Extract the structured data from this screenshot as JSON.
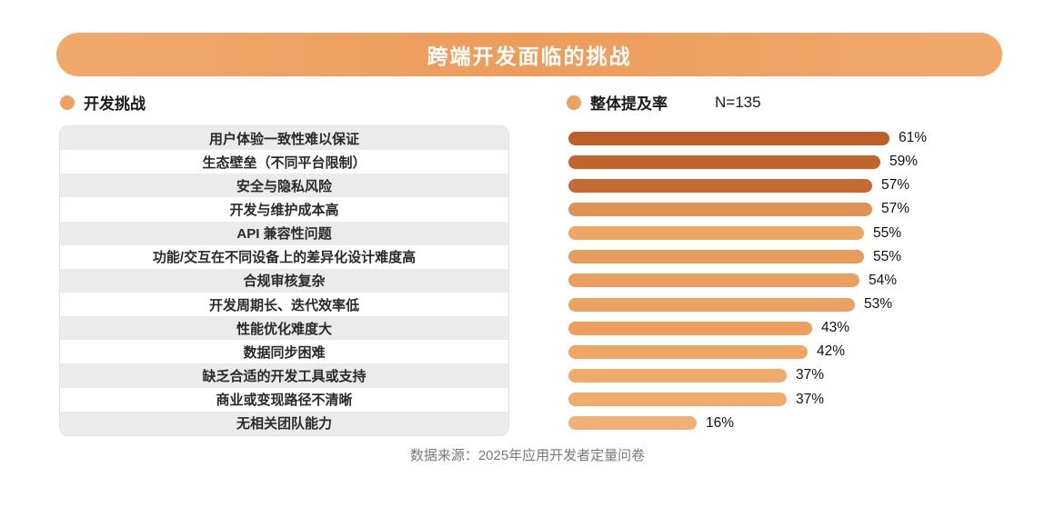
{
  "title": "跨端开发面临的挑战",
  "legend": {
    "left_label": "开发挑战",
    "right_label": "整体提及率",
    "sample_size": "N=135"
  },
  "footer": "数据来源：2025年应用开发者定量问卷",
  "colors": {
    "banner": "#ED9C5B",
    "legend_dot": "#EDA35F",
    "row_alt_bg": "#EBEBEB",
    "bar_dark": "#BD5F28",
    "bar_light": "#F2B077"
  },
  "chart_data": {
    "type": "bar",
    "orientation": "horizontal",
    "title": "跨端开发面临的挑战",
    "legend": [
      "开发挑战",
      "整体提及率"
    ],
    "sample_size": 135,
    "xlim": [
      0,
      65
    ],
    "grid": false,
    "categories": [
      "用户体验一致性难以保证",
      "生态壁垒（不同平台限制）",
      "安全与隐私风险",
      "开发与维护成本高",
      "API 兼容性问题",
      "功能/交互在不同设备上的差异化设计难度高",
      "合规审核复杂",
      "开发周期长、迭代效率低",
      "性能优化难度大",
      "数据同步困难",
      "缺乏合适的开发工具或支持",
      "商业或变现路径不清晰",
      "无相关团队能力"
    ],
    "values": [
      61,
      59,
      57,
      57,
      55,
      55,
      54,
      53,
      43,
      42,
      37,
      37,
      16
    ],
    "percent_labels": [
      "61%",
      "59%",
      "57%",
      "57%",
      "55%",
      "55%",
      "54%",
      "53%",
      "43%",
      "42%",
      "37%",
      "37%",
      "16%"
    ],
    "bar_colors": [
      "#BD5F28",
      "#C0652C",
      "#C46B31",
      "#E29155",
      "#EFA664",
      "#E89C5C",
      "#EBA061",
      "#ECA263",
      "#EDA05E",
      "#EEA664",
      "#F0AA6A",
      "#F0AA6A",
      "#F2B077"
    ],
    "source": "数据来源：2025年应用开发者定量问卷"
  }
}
